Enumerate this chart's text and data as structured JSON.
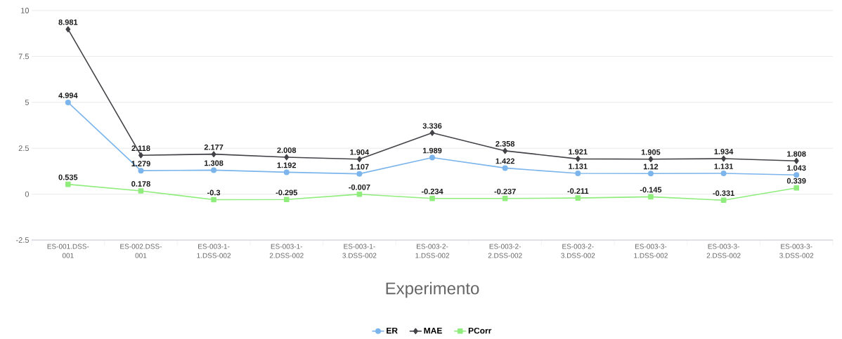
{
  "chart_data": {
    "type": "line",
    "xlabel": "Experimento",
    "categories": [
      "ES-001.DSS-001",
      "ES-002.DSS-001",
      "ES-003-1-1.DSS-002",
      "ES-003-1-2.DSS-002",
      "ES-003-1-3.DSS-002",
      "ES-003-2-1.DSS-002",
      "ES-003-2-2.DSS-002",
      "ES-003-2-3.DSS-002",
      "ES-003-3-1.DSS-002",
      "ES-003-3-2.DSS-002",
      "ES-003-3-3.DSS-002"
    ],
    "series": [
      {
        "name": "ER",
        "color": "#7cb5ec",
        "marker": "circle",
        "values": [
          4.994,
          1.279,
          1.308,
          1.192,
          1.107,
          1.989,
          1.422,
          1.131,
          1.12,
          1.131,
          1.043
        ]
      },
      {
        "name": "MAE",
        "color": "#434348",
        "marker": "diamond",
        "values": [
          8.981,
          2.118,
          2.177,
          2.008,
          1.904,
          3.336,
          2.358,
          1.921,
          1.905,
          1.934,
          1.808
        ]
      },
      {
        "name": "PCorr",
        "color": "#90ed7d",
        "marker": "square",
        "values": [
          0.535,
          0.178,
          -0.3,
          -0.295,
          -0.007,
          -0.234,
          -0.237,
          -0.211,
          -0.145,
          -0.331,
          0.339
        ]
      }
    ],
    "ylim": [
      -2.5,
      10
    ],
    "yticks": [
      -2.5,
      0,
      2.5,
      5,
      7.5,
      10
    ],
    "grid": "y",
    "legend": "bottom",
    "data_labels": true
  }
}
